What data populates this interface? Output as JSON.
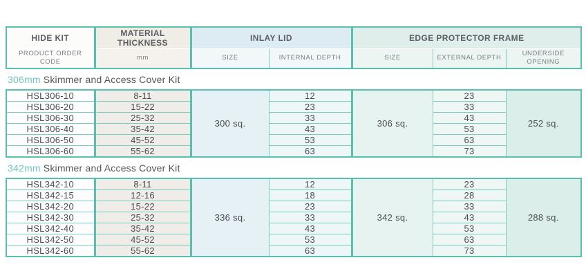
{
  "table": {
    "header": {
      "hide_kit": {
        "group": "HIDE KIT",
        "sub": "PRODUCT ORDER CODE"
      },
      "material_thickness": {
        "group": "MATERIAL THICKNESS",
        "sub": "mm"
      },
      "inlay_lid": {
        "group": "INLAY LID",
        "subs": [
          "SIZE",
          "INTERNAL DEPTH"
        ]
      },
      "edge_protector": {
        "group": "EDGE PROTECTOR FRAME",
        "subs": [
          "SIZE",
          "EXTERNAL DEPTH",
          "UNDERSIDE OPENING"
        ]
      }
    },
    "sections": [
      {
        "title_size": "306mm",
        "title_rest": " Skimmer and Access Cover Kit",
        "inlay_size": "300 sq.",
        "edge_size": "306 sq.",
        "underside_opening": "252 sq.",
        "rows": [
          {
            "code": "HSL306-10",
            "thickness_mm": "8-11",
            "internal_depth": "12",
            "external_depth": "23"
          },
          {
            "code": "HSL306-20",
            "thickness_mm": "15-22",
            "internal_depth": "23",
            "external_depth": "33"
          },
          {
            "code": "HSL306-30",
            "thickness_mm": "25-32",
            "internal_depth": "33",
            "external_depth": "43"
          },
          {
            "code": "HSL306-40",
            "thickness_mm": "35-42",
            "internal_depth": "43",
            "external_depth": "53"
          },
          {
            "code": "HSL306-50",
            "thickness_mm": "45-52",
            "internal_depth": "53",
            "external_depth": "63"
          },
          {
            "code": "HSL306-60",
            "thickness_mm": "55-62",
            "internal_depth": "63",
            "external_depth": "73"
          }
        ]
      },
      {
        "title_size": "342mm",
        "title_rest": " Skimmer and Access Cover Kit",
        "inlay_size": "336 sq.",
        "edge_size": "342 sq.",
        "underside_opening": "288 sq.",
        "rows": [
          {
            "code": "HSL342-10",
            "thickness_mm": "8-11",
            "internal_depth": "12",
            "external_depth": "23"
          },
          {
            "code": "HSL342-15",
            "thickness_mm": "12-16",
            "internal_depth": "18",
            "external_depth": "28"
          },
          {
            "code": "HSL342-20",
            "thickness_mm": "15-22",
            "internal_depth": "23",
            "external_depth": "33"
          },
          {
            "code": "HSL342-30",
            "thickness_mm": "25-32",
            "internal_depth": "33",
            "external_depth": "43"
          },
          {
            "code": "HSL342-40",
            "thickness_mm": "35-42",
            "internal_depth": "43",
            "external_depth": "53"
          },
          {
            "code": "HSL342-50",
            "thickness_mm": "45-52",
            "internal_depth": "53",
            "external_depth": "63"
          },
          {
            "code": "HSL342-60",
            "thickness_mm": "55-62",
            "internal_depth": "63",
            "external_depth": "73"
          }
        ]
      }
    ]
  },
  "colors": {
    "teal_border": "#58c0ae",
    "teal_line": "#7accbe",
    "title_accent": "#70c7bb",
    "header_text": "#5b5e64",
    "data_text": "#494c52"
  }
}
